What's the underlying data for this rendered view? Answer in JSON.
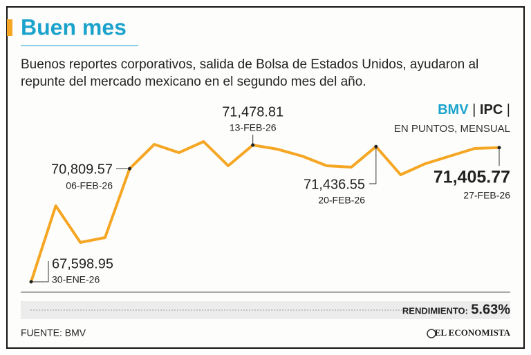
{
  "chart_data": {
    "type": "line",
    "title": "Buen mes",
    "subtitle": [
      "Buenos reportes corporativos, salida de Bolsa de Estados Unidos, ayudaron al",
      "repunte del mercado mexicano en el segundo mes del año."
    ],
    "header_parts": [
      "BMV",
      "|",
      "IPC",
      "|"
    ],
    "unit_label": "EN PUNTOS, MENSUAL",
    "categories": [
      "30-ENE-26",
      null,
      null,
      null,
      "06-FEB-26",
      null,
      null,
      null,
      null,
      "13-FEB-26",
      null,
      null,
      null,
      null,
      "20-FEB-26",
      null,
      null,
      null,
      null,
      "27-FEB-26"
    ],
    "values": [
      67598.95,
      69755,
      68716,
      68853,
      70809.57,
      71499,
      71264,
      71578,
      70892,
      71478.81,
      71362,
      71166,
      70892,
      70853,
      71436.55,
      70637,
      70951,
      71166,
      71382,
      71405.77
    ],
    "value_labels": [
      "67,598.95",
      null,
      null,
      null,
      "70,809.57",
      null,
      null,
      null,
      null,
      "71,478.81",
      null,
      null,
      null,
      null,
      "71,436.55",
      null,
      null,
      null,
      null,
      "71,405.77"
    ],
    "color": "#f5a623",
    "performance_label": "RENDIMIENTO:",
    "performance_value": "5.63%",
    "source": "FUENTE: BMV",
    "logo": "EL ECONOMISTA"
  }
}
